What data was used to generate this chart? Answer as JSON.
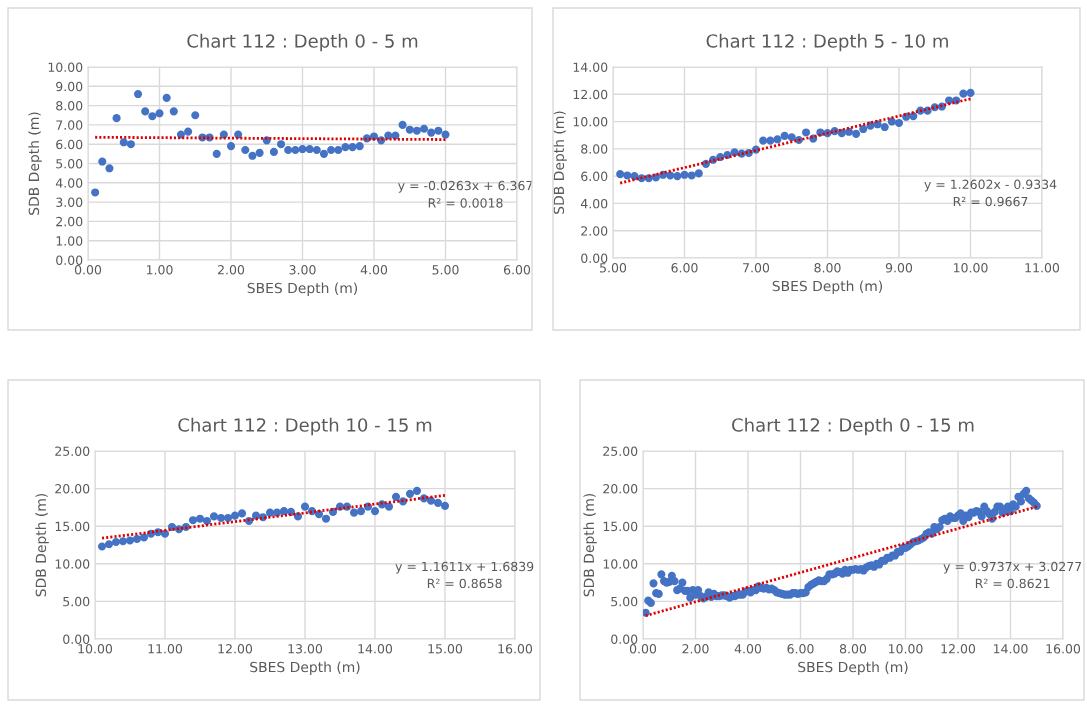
{
  "chart_data": [
    {
      "type": "scatter",
      "title": "Chart 112 : Depth 0 - 5 m",
      "xlabel": "SBES Depth (m)",
      "ylabel": "SDB Depth (m)",
      "marker": "circle",
      "grid": true,
      "legend": false,
      "xlim": [
        0,
        6
      ],
      "ylim": [
        0,
        10
      ],
      "xticks": [
        {
          "value": 0,
          "label": "0.00"
        },
        {
          "value": 1,
          "label": "1.00"
        },
        {
          "value": 2,
          "label": "2.00"
        },
        {
          "value": 3,
          "label": "3.00"
        },
        {
          "value": 4,
          "label": "4.00"
        },
        {
          "value": 5,
          "label": "5.00"
        },
        {
          "value": 6,
          "label": "6.00"
        }
      ],
      "yticks": [
        {
          "value": 0,
          "label": "0.00"
        },
        {
          "value": 1,
          "label": "1.00"
        },
        {
          "value": 2,
          "label": "2.00"
        },
        {
          "value": 3,
          "label": "3.00"
        },
        {
          "value": 4,
          "label": "4.00"
        },
        {
          "value": 5,
          "label": "5.00"
        },
        {
          "value": 6,
          "label": "6.00"
        },
        {
          "value": 7,
          "label": "7.00"
        },
        {
          "value": 8,
          "label": "8.00"
        },
        {
          "value": 9,
          "label": "9.00"
        },
        {
          "value": 10,
          "label": "10.00"
        }
      ],
      "annotations": [
        "y = -0.0263x + 6.367",
        "R² = 0.0018"
      ],
      "series": [
        {
          "color": "#4472c4",
          "x": [
            0.1,
            0.2,
            0.3,
            0.4,
            0.5,
            0.6,
            0.7,
            0.8,
            0.9,
            1.0,
            1.1,
            1.2,
            1.3,
            1.4,
            1.5,
            1.6,
            1.7,
            1.8,
            1.9,
            2.0,
            2.1,
            2.2,
            2.3,
            2.4,
            2.5,
            2.6,
            2.7,
            2.8,
            2.9,
            3.0,
            3.1,
            3.2,
            3.3,
            3.4,
            3.5,
            3.6,
            3.7,
            3.8,
            3.9,
            4.0,
            4.1,
            4.2,
            4.3,
            4.4,
            4.5,
            4.6,
            4.7,
            4.8,
            4.9,
            5.0
          ],
          "values": [
            3.5,
            5.1,
            4.75,
            7.35,
            6.1,
            6.0,
            8.6,
            7.7,
            7.45,
            7.6,
            8.4,
            7.7,
            6.5,
            6.65,
            7.5,
            6.35,
            6.35,
            5.5,
            6.5,
            5.9,
            6.5,
            5.7,
            5.4,
            5.55,
            6.2,
            5.6,
            6.0,
            5.7,
            5.7,
            5.75,
            5.75,
            5.7,
            5.5,
            5.7,
            5.7,
            5.85,
            5.85,
            5.9,
            6.3,
            6.4,
            6.2,
            6.45,
            6.45,
            7.0,
            6.75,
            6.7,
            6.8,
            6.6,
            6.7,
            6.5
          ]
        },
        {
          "type": "line",
          "color": "#e00000",
          "line_style": "dotted",
          "marker": "none",
          "x": [
            0.1,
            5.0
          ],
          "values": [
            6.36,
            6.24
          ]
        }
      ]
    },
    {
      "type": "scatter",
      "title": "Chart 112 : Depth 5 - 10 m",
      "xlabel": "SBES Depth (m)",
      "ylabel": "SDB Depth (m)",
      "marker": "circle",
      "grid": true,
      "legend": false,
      "xlim": [
        5,
        11
      ],
      "ylim": [
        0,
        14
      ],
      "xticks": [
        {
          "value": 5,
          "label": "5.00"
        },
        {
          "value": 6,
          "label": "6.00"
        },
        {
          "value": 7,
          "label": "7.00"
        },
        {
          "value": 8,
          "label": "8.00"
        },
        {
          "value": 9,
          "label": "9.00"
        },
        {
          "value": 10,
          "label": "10.00"
        },
        {
          "value": 11,
          "label": "11.00"
        }
      ],
      "yticks": [
        {
          "value": 0,
          "label": "0.00"
        },
        {
          "value": 2,
          "label": "2.00"
        },
        {
          "value": 4,
          "label": "4.00"
        },
        {
          "value": 6,
          "label": "6.00"
        },
        {
          "value": 8,
          "label": "8.00"
        },
        {
          "value": 10,
          "label": "10.00"
        },
        {
          "value": 12,
          "label": "12.00"
        },
        {
          "value": 14,
          "label": "14.00"
        }
      ],
      "annotations": [
        "y = 1.2602x - 0.9334",
        "R² = 0.9667"
      ],
      "series": [
        {
          "color": "#4472c4",
          "x": [
            5.1,
            5.2,
            5.3,
            5.4,
            5.5,
            5.6,
            5.7,
            5.8,
            5.9,
            6.0,
            6.1,
            6.2,
            6.3,
            6.4,
            6.5,
            6.6,
            6.7,
            6.8,
            6.9,
            7.0,
            7.1,
            7.2,
            7.3,
            7.4,
            7.5,
            7.6,
            7.7,
            7.8,
            7.9,
            8.0,
            8.1,
            8.2,
            8.3,
            8.4,
            8.5,
            8.6,
            8.7,
            8.8,
            8.9,
            9.0,
            9.1,
            9.2,
            9.3,
            9.4,
            9.5,
            9.6,
            9.7,
            9.8,
            9.9,
            10.0
          ],
          "values": [
            6.15,
            6.05,
            6.0,
            5.85,
            5.85,
            5.9,
            6.1,
            6.05,
            6.0,
            6.1,
            6.05,
            6.2,
            6.9,
            7.2,
            7.4,
            7.55,
            7.75,
            7.65,
            7.7,
            7.95,
            8.6,
            8.6,
            8.7,
            8.95,
            8.85,
            8.65,
            9.2,
            8.75,
            9.2,
            9.15,
            9.3,
            9.15,
            9.25,
            9.1,
            9.45,
            9.7,
            9.8,
            9.6,
            10.0,
            9.9,
            10.35,
            10.4,
            10.8,
            10.8,
            11.05,
            11.1,
            11.55,
            11.55,
            12.05,
            12.1
          ]
        },
        {
          "type": "line",
          "color": "#e00000",
          "line_style": "dotted",
          "marker": "none",
          "x": [
            5.1,
            10.0
          ],
          "values": [
            5.49,
            11.67
          ]
        }
      ]
    },
    {
      "type": "scatter",
      "title": "Chart 112 : Depth 10 - 15 m",
      "xlabel": "SBES Depth (m)",
      "ylabel": "SDB Depth (m)",
      "marker": "circle",
      "grid": true,
      "legend": false,
      "xlim": [
        10,
        16
      ],
      "ylim": [
        0,
        25
      ],
      "xticks": [
        {
          "value": 10,
          "label": "10.00"
        },
        {
          "value": 11,
          "label": "11.00"
        },
        {
          "value": 12,
          "label": "12.00"
        },
        {
          "value": 13,
          "label": "13.00"
        },
        {
          "value": 14,
          "label": "14.00"
        },
        {
          "value": 15,
          "label": "15.00"
        },
        {
          "value": 16,
          "label": "16.00"
        }
      ],
      "yticks": [
        {
          "value": 0,
          "label": "0.00"
        },
        {
          "value": 5,
          "label": "5.00"
        },
        {
          "value": 10,
          "label": "10.00"
        },
        {
          "value": 15,
          "label": "15.00"
        },
        {
          "value": 20,
          "label": "20.00"
        },
        {
          "value": 25,
          "label": "25.00"
        }
      ],
      "annotations": [
        "y = 1.1611x + 1.6839",
        "R² = 0.8658"
      ],
      "series": [
        {
          "color": "#4472c4",
          "x": [
            10.1,
            10.2,
            10.3,
            10.4,
            10.5,
            10.6,
            10.7,
            10.8,
            10.9,
            11.0,
            11.1,
            11.2,
            11.3,
            11.4,
            11.5,
            11.6,
            11.7,
            11.8,
            11.9,
            12.0,
            12.1,
            12.2,
            12.3,
            12.4,
            12.5,
            12.6,
            12.7,
            12.8,
            12.9,
            13.0,
            13.1,
            13.2,
            13.3,
            13.4,
            13.5,
            13.6,
            13.7,
            13.8,
            13.9,
            14.0,
            14.1,
            14.2,
            14.3,
            14.4,
            14.5,
            14.6,
            14.7,
            14.8,
            14.9,
            15.0
          ],
          "values": [
            12.3,
            12.6,
            12.9,
            13.0,
            13.1,
            13.3,
            13.5,
            14.0,
            14.2,
            14.0,
            14.9,
            14.6,
            14.9,
            15.8,
            16.0,
            15.7,
            16.3,
            16.1,
            16.1,
            16.4,
            16.7,
            15.7,
            16.4,
            16.2,
            16.8,
            16.8,
            17.0,
            16.9,
            16.3,
            17.6,
            17.0,
            16.6,
            16.0,
            16.9,
            17.6,
            17.6,
            16.8,
            17.0,
            17.6,
            17.0,
            17.9,
            17.6,
            18.9,
            18.3,
            19.3,
            19.7,
            18.7,
            18.4,
            18.1,
            17.7
          ]
        },
        {
          "type": "line",
          "color": "#e00000",
          "line_style": "dotted",
          "marker": "none",
          "x": [
            10.1,
            15.0
          ],
          "values": [
            13.4,
            19.1
          ]
        }
      ]
    },
    {
      "type": "scatter",
      "title": "Chart 112 : Depth 0 - 15 m",
      "xlabel": "SBES Depth (m)",
      "ylabel": "SDB Depth (m)",
      "marker": "circle",
      "grid": true,
      "legend": false,
      "xlim": [
        0,
        16
      ],
      "ylim": [
        0,
        25
      ],
      "xticks": [
        {
          "value": 0,
          "label": "0.00"
        },
        {
          "value": 2,
          "label": "2.00"
        },
        {
          "value": 4,
          "label": "4.00"
        },
        {
          "value": 6,
          "label": "6.00"
        },
        {
          "value": 8,
          "label": "8.00"
        },
        {
          "value": 10,
          "label": "10.00"
        },
        {
          "value": 12,
          "label": "12.00"
        },
        {
          "value": 14,
          "label": "14.00"
        },
        {
          "value": 16,
          "label": "16.00"
        }
      ],
      "yticks": [
        {
          "value": 0,
          "label": "0.00"
        },
        {
          "value": 5,
          "label": "5.00"
        },
        {
          "value": 10,
          "label": "10.00"
        },
        {
          "value": 15,
          "label": "15.00"
        },
        {
          "value": 20,
          "label": "20.00"
        },
        {
          "value": 25,
          "label": "25.00"
        }
      ],
      "annotations": [
        "y = 0.9737x + 3.0277",
        "R² = 0.8621"
      ],
      "series": [
        {
          "color": "#4472c4",
          "x": [
            0.1,
            0.2,
            0.3,
            0.4,
            0.5,
            0.6,
            0.7,
            0.8,
            0.9,
            1.0,
            1.1,
            1.2,
            1.3,
            1.4,
            1.5,
            1.6,
            1.7,
            1.8,
            1.9,
            2.0,
            2.1,
            2.2,
            2.3,
            2.4,
            2.5,
            2.6,
            2.7,
            2.8,
            2.9,
            3.0,
            3.1,
            3.2,
            3.3,
            3.4,
            3.5,
            3.6,
            3.7,
            3.8,
            3.9,
            4.0,
            4.1,
            4.2,
            4.3,
            4.4,
            4.5,
            4.6,
            4.7,
            4.8,
            4.9,
            5.0,
            5.1,
            5.2,
            5.3,
            5.4,
            5.5,
            5.6,
            5.7,
            5.8,
            5.9,
            6.0,
            6.1,
            6.2,
            6.3,
            6.4,
            6.5,
            6.6,
            6.7,
            6.8,
            6.9,
            7.0,
            7.1,
            7.2,
            7.3,
            7.4,
            7.5,
            7.6,
            7.7,
            7.8,
            7.9,
            8.0,
            8.1,
            8.2,
            8.3,
            8.4,
            8.5,
            8.6,
            8.7,
            8.8,
            8.9,
            9.0,
            9.1,
            9.2,
            9.3,
            9.4,
            9.5,
            9.6,
            9.7,
            9.8,
            9.9,
            10.0,
            10.1,
            10.2,
            10.3,
            10.4,
            10.5,
            10.6,
            10.7,
            10.8,
            10.9,
            11.0,
            11.1,
            11.2,
            11.3,
            11.4,
            11.5,
            11.6,
            11.7,
            11.8,
            11.9,
            12.0,
            12.1,
            12.2,
            12.3,
            12.4,
            12.5,
            12.6,
            12.7,
            12.8,
            12.9,
            13.0,
            13.1,
            13.2,
            13.3,
            13.4,
            13.5,
            13.6,
            13.7,
            13.8,
            13.9,
            14.0,
            14.1,
            14.2,
            14.3,
            14.4,
            14.5,
            14.6,
            14.7,
            14.8,
            14.9,
            15.0
          ],
          "values": [
            3.5,
            5.1,
            4.8,
            7.4,
            6.1,
            6.0,
            8.6,
            7.7,
            7.5,
            7.6,
            8.4,
            7.7,
            6.5,
            6.7,
            7.5,
            6.4,
            6.4,
            5.5,
            6.5,
            5.9,
            6.5,
            5.7,
            5.4,
            5.6,
            6.2,
            5.6,
            6.0,
            5.7,
            5.7,
            5.8,
            5.8,
            5.7,
            5.5,
            5.7,
            5.7,
            5.9,
            5.9,
            5.9,
            6.3,
            6.4,
            6.2,
            6.5,
            6.5,
            7.0,
            6.8,
            6.7,
            6.8,
            6.6,
            6.7,
            6.5,
            6.2,
            6.1,
            6.0,
            5.9,
            5.9,
            5.9,
            6.1,
            6.1,
            6.0,
            6.1,
            6.1,
            6.2,
            6.9,
            7.2,
            7.4,
            7.6,
            7.8,
            7.7,
            7.7,
            8.0,
            8.6,
            8.6,
            8.7,
            9.0,
            8.9,
            8.7,
            9.2,
            8.8,
            9.2,
            9.2,
            9.3,
            9.2,
            9.3,
            9.1,
            9.5,
            9.7,
            9.8,
            9.6,
            10.0,
            9.9,
            10.4,
            10.4,
            10.8,
            10.8,
            11.1,
            11.1,
            11.6,
            11.6,
            12.1,
            12.1,
            12.3,
            12.6,
            12.9,
            13.0,
            13.1,
            13.3,
            13.5,
            14.0,
            14.2,
            14.0,
            14.9,
            14.6,
            14.9,
            15.8,
            16.0,
            15.7,
            16.3,
            16.1,
            16.1,
            16.4,
            16.7,
            15.7,
            16.4,
            16.2,
            16.8,
            16.8,
            17.0,
            16.9,
            16.3,
            17.6,
            17.0,
            16.6,
            16.0,
            16.9,
            17.6,
            17.6,
            16.8,
            17.0,
            17.6,
            17.0,
            17.9,
            17.6,
            18.9,
            18.3,
            19.3,
            19.7,
            18.7,
            18.4,
            18.1,
            17.7
          ]
        },
        {
          "type": "line",
          "color": "#e00000",
          "line_style": "dotted",
          "marker": "none",
          "x": [
            0.1,
            15.0
          ],
          "values": [
            3.1,
            17.6
          ]
        }
      ]
    }
  ]
}
